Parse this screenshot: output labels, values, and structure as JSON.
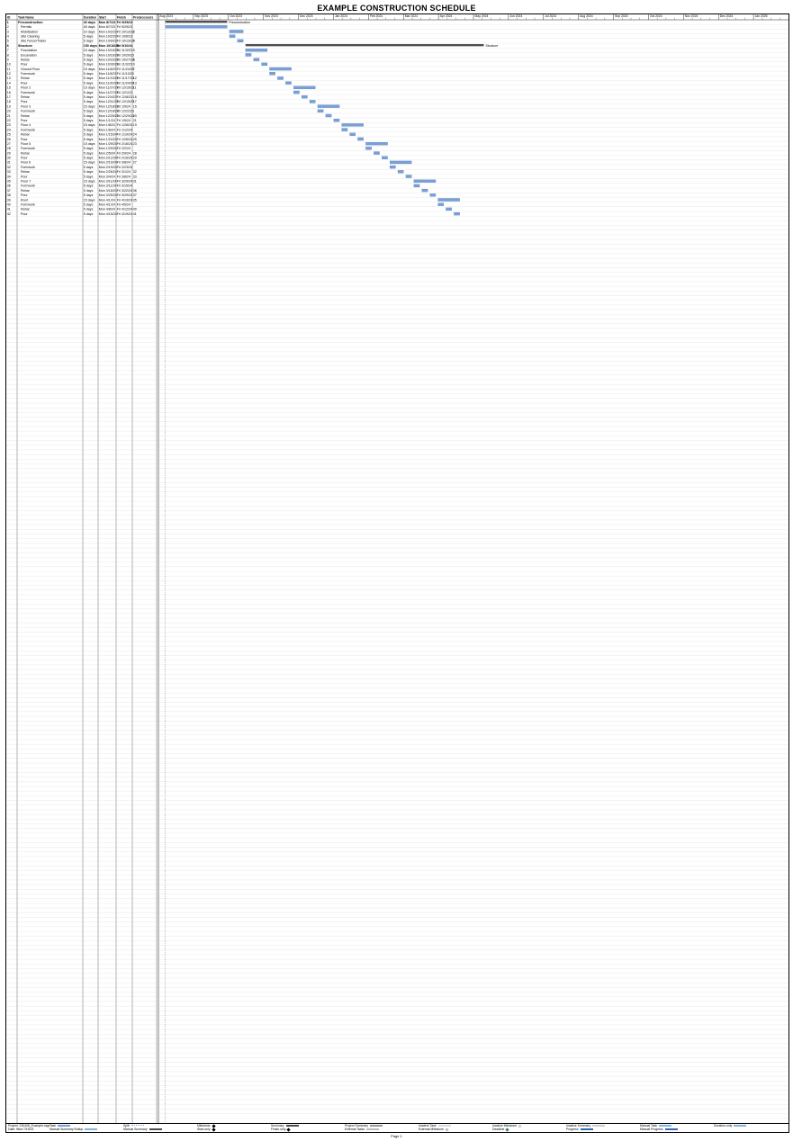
{
  "document": {
    "title": "EXAMPLE CONSTRUCTION SCHEDULE",
    "page_label": "Page 1"
  },
  "columns": {
    "id": "ID",
    "task_name": "Task Name",
    "duration": "Duration",
    "start": "Start",
    "finish": "Finish",
    "predecessors": "Predecessors"
  },
  "footer": {
    "project_label": "Project: 230408_Example.mpp",
    "date_label": "Date: Wed 7/19/23",
    "legend": [
      {
        "label": "Task",
        "color": "#7a9fd4",
        "style": "bar"
      },
      {
        "label": "Split",
        "color": "#7a9fd4",
        "style": "dots"
      },
      {
        "label": "Milestone",
        "color": "#000000",
        "style": "diamond"
      },
      {
        "label": "Summary",
        "color": "#4d4d4d",
        "style": "bar"
      },
      {
        "label": "Project Summary",
        "color": "#999999",
        "style": "bar"
      },
      {
        "label": "Inactive Task",
        "color": "#cfd8e8",
        "style": "bar"
      },
      {
        "label": "Inactive Milestone",
        "color": "#cccccc",
        "style": "diamond"
      },
      {
        "label": "Inactive Summary",
        "color": "#cccccc",
        "style": "bar"
      },
      {
        "label": "Manual Task",
        "color": "#7fb5e0",
        "style": "bar"
      },
      {
        "label": "Duration-only",
        "color": "#7fb5e0",
        "style": "bar"
      },
      {
        "label": "Manual Summary Rollup",
        "color": "#7fb5e0",
        "style": "bar"
      },
      {
        "label": "Manual Summary",
        "color": "#4d4d4d",
        "style": "bar"
      },
      {
        "label": "Start-only",
        "color": "#000000",
        "style": "tick"
      },
      {
        "label": "Finish-only",
        "color": "#000000",
        "style": "tick"
      },
      {
        "label": "External Tasks",
        "color": "#bbbbbb",
        "style": "bar"
      },
      {
        "label": "External Milestone",
        "color": "#bbbbbb",
        "style": "diamond"
      },
      {
        "label": "Deadline",
        "color": "#3a7d44",
        "style": "arrow"
      },
      {
        "label": "Progress",
        "color": "#2e6db4",
        "style": "bar"
      },
      {
        "label": "Manual Progress",
        "color": "#2e6db4",
        "style": "bar"
      }
    ]
  },
  "timeline": {
    "months": [
      "Aug 2023",
      "Sep 2023",
      "Oct 2023",
      "Nov 2023",
      "Dec 2023",
      "Jan 2024",
      "Feb 2024",
      "Mar 2024",
      "Apr 2024",
      "May 2024",
      "Jun 2024",
      "Jul 2024",
      "Aug 2024",
      "Sep 2024",
      "Oct 2024",
      "Nov 2024",
      "Dec 2024",
      "Jan 2025"
    ]
  },
  "tasks": [
    {
      "id": "1",
      "name": "Preconstruction",
      "dur": "40 days",
      "start": "Mon 8/7/23",
      "finish": "Fri 9/29/23",
      "pred": ""
    },
    {
      "id": "2",
      "name": "Permits",
      "dur": "40 days",
      "start": "Mon 8/7/23",
      "finish": "Fri 9/29/23",
      "pred": ""
    },
    {
      "id": "3",
      "name": "Mobilization",
      "dur": "10 days",
      "start": "Mon 10/2/23",
      "finish": "Fri 10/13/23",
      "pred": "2"
    },
    {
      "id": "4",
      "name": "Site Clearing",
      "dur": "5 days",
      "start": "Mon 10/2/23",
      "finish": "Fri 10/6/23",
      "pred": ""
    },
    {
      "id": "5",
      "name": "Site Fence/Trailer",
      "dur": "5 days",
      "start": "Mon 10/9/23",
      "finish": "Fri 10/13/23",
      "pred": "4"
    },
    {
      "id": "6",
      "name": "Structure",
      "dur": "150 days",
      "start": "Mon 10/16/23",
      "finish": "Fri 5/10/24",
      "pred": ""
    },
    {
      "id": "7",
      "name": "Foundation",
      "dur": "15 days",
      "start": "Mon 10/16/23",
      "finish": "Fri 11/3/23",
      "pred": "5"
    },
    {
      "id": "8",
      "name": "Excavation",
      "dur": "5 days",
      "start": "Mon 10/16/23",
      "finish": "Fri 10/20/23",
      "pred": ""
    },
    {
      "id": "9",
      "name": "Rebar",
      "dur": "5 days",
      "start": "Mon 10/23/23",
      "finish": "Fri 10/27/23",
      "pred": "8"
    },
    {
      "id": "10",
      "name": "Pour",
      "dur": "5 days",
      "start": "Mon 10/30/23",
      "finish": "Fri 11/3/23",
      "pred": "9"
    },
    {
      "id": "11",
      "name": "Ground Floor",
      "dur": "15 days",
      "start": "Mon 11/6/23",
      "finish": "Fri 11/24/23",
      "pred": "7"
    },
    {
      "id": "12",
      "name": "Formwork",
      "dur": "5 days",
      "start": "Mon 11/6/23",
      "finish": "Fri 11/10/23",
      "pred": ""
    },
    {
      "id": "13",
      "name": "Rebar",
      "dur": "5 days",
      "start": "Mon 11/13/23",
      "finish": "Fri 11/17/23",
      "pred": "12"
    },
    {
      "id": "14",
      "name": "Pour",
      "dur": "5 days",
      "start": "Mon 11/20/23",
      "finish": "Fri 11/24/23",
      "pred": "13"
    },
    {
      "id": "15",
      "name": "Floor 2",
      "dur": "15 days",
      "start": "Mon 11/27/23",
      "finish": "Fri 12/15/23",
      "pred": "11"
    },
    {
      "id": "16",
      "name": "Formwork",
      "dur": "5 days",
      "start": "Mon 11/27/23",
      "finish": "Fri 12/1/23",
      "pred": ""
    },
    {
      "id": "17",
      "name": "Rebar",
      "dur": "5 days",
      "start": "Mon 12/4/23",
      "finish": "Fri 12/8/23",
      "pred": "16"
    },
    {
      "id": "18",
      "name": "Pour",
      "dur": "5 days",
      "start": "Mon 12/11/23",
      "finish": "Fri 12/15/23",
      "pred": "17"
    },
    {
      "id": "19",
      "name": "Floor 3",
      "dur": "15 days",
      "start": "Mon 12/18/23",
      "finish": "Fri 1/5/24",
      "pred": "15"
    },
    {
      "id": "20",
      "name": "Formwork",
      "dur": "5 days",
      "start": "Mon 12/18/23",
      "finish": "Fri 12/22/23",
      "pred": ""
    },
    {
      "id": "21",
      "name": "Rebar",
      "dur": "5 days",
      "start": "Mon 12/25/23",
      "finish": "Fri 12/29/23",
      "pred": "20"
    },
    {
      "id": "22",
      "name": "Pour",
      "dur": "5 days",
      "start": "Mon 1/1/24",
      "finish": "Fri 1/5/24",
      "pred": "21"
    },
    {
      "id": "23",
      "name": "Floor 4",
      "dur": "15 days",
      "start": "Mon 1/8/24",
      "finish": "Fri 1/26/24",
      "pred": "19"
    },
    {
      "id": "24",
      "name": "Formwork",
      "dur": "5 days",
      "start": "Mon 1/8/24",
      "finish": "Fri 1/12/24",
      "pred": ""
    },
    {
      "id": "25",
      "name": "Rebar",
      "dur": "5 days",
      "start": "Mon 1/15/24",
      "finish": "Fri 1/19/24",
      "pred": "24"
    },
    {
      "id": "26",
      "name": "Pour",
      "dur": "5 days",
      "start": "Mon 1/22/24",
      "finish": "Fri 1/26/24",
      "pred": "25"
    },
    {
      "id": "27",
      "name": "Floor 5",
      "dur": "15 days",
      "start": "Mon 1/29/24",
      "finish": "Fri 2/16/24",
      "pred": "23"
    },
    {
      "id": "28",
      "name": "Formwork",
      "dur": "5 days",
      "start": "Mon 1/29/24",
      "finish": "Fri 2/2/24",
      "pred": ""
    },
    {
      "id": "29",
      "name": "Rebar",
      "dur": "5 days",
      "start": "Mon 2/5/24",
      "finish": "Fri 2/9/24",
      "pred": "28"
    },
    {
      "id": "30",
      "name": "Pour",
      "dur": "5 days",
      "start": "Mon 2/12/24",
      "finish": "Fri 2/16/24",
      "pred": "29"
    },
    {
      "id": "31",
      "name": "Floor 6",
      "dur": "15 days",
      "start": "Mon 2/19/24",
      "finish": "Fri 3/8/24",
      "pred": "27"
    },
    {
      "id": "32",
      "name": "Formwork",
      "dur": "5 days",
      "start": "Mon 2/19/24",
      "finish": "Fri 2/23/24",
      "pred": ""
    },
    {
      "id": "33",
      "name": "Rebar",
      "dur": "5 days",
      "start": "Mon 2/26/24",
      "finish": "Fri 3/1/24",
      "pred": "32"
    },
    {
      "id": "34",
      "name": "Pour",
      "dur": "5 days",
      "start": "Mon 3/4/24",
      "finish": "Fri 3/8/24",
      "pred": "33"
    },
    {
      "id": "35",
      "name": "Floor 7",
      "dur": "15 days",
      "start": "Mon 3/11/24",
      "finish": "Fri 3/29/24",
      "pred": "31"
    },
    {
      "id": "36",
      "name": "Formwork",
      "dur": "5 days",
      "start": "Mon 3/11/24",
      "finish": "Fri 3/15/24",
      "pred": ""
    },
    {
      "id": "37",
      "name": "Rebar",
      "dur": "5 days",
      "start": "Mon 3/18/24",
      "finish": "Fri 3/22/24",
      "pred": "36"
    },
    {
      "id": "38",
      "name": "Pour",
      "dur": "5 days",
      "start": "Mon 3/25/24",
      "finish": "Fri 3/29/24",
      "pred": "37"
    },
    {
      "id": "39",
      "name": "Roof",
      "dur": "15 days",
      "start": "Mon 4/1/24",
      "finish": "Fri 4/19/24",
      "pred": "35"
    },
    {
      "id": "40",
      "name": "Formwork",
      "dur": "5 days",
      "start": "Mon 4/1/24",
      "finish": "Fri 4/5/24",
      "pred": ""
    },
    {
      "id": "41",
      "name": "Rebar",
      "dur": "5 days",
      "start": "Mon 4/8/24",
      "finish": "Fri 4/12/24",
      "pred": "40"
    },
    {
      "id": "42",
      "name": "Pour",
      "dur": "5 days",
      "start": "Mon 4/15/24",
      "finish": "Fri 4/19/24",
      "pred": "41"
    }
  ],
  "row_stub_count": 236
}
